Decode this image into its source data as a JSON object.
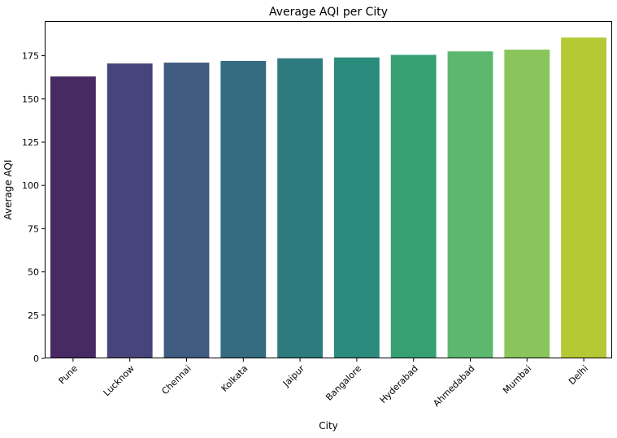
{
  "chart_data": {
    "type": "bar",
    "title": "Average AQI per City",
    "xlabel": "City",
    "ylabel": "Average AQI",
    "categories": [
      "Pune",
      "Lucknow",
      "Chennai",
      "Kolkata",
      "Jaipur",
      "Bangalore",
      "Hyderabad",
      "Ahmedabad",
      "Mumbai",
      "Delhi"
    ],
    "values": [
      163,
      170.5,
      171,
      172,
      173.5,
      174,
      175.5,
      177.5,
      178.5,
      185.5
    ],
    "colors": [
      "#482a63",
      "#46447a",
      "#405b80",
      "#356c80",
      "#2d7a7f",
      "#2b8b7c",
      "#36a073",
      "#5db76e",
      "#8ac55c",
      "#b5c935"
    ],
    "ylim": [
      0,
      195
    ],
    "yticks": [
      0,
      25,
      50,
      75,
      100,
      125,
      150,
      175
    ],
    "grid": false,
    "legend": "none",
    "xtick_rotation": 45
  }
}
